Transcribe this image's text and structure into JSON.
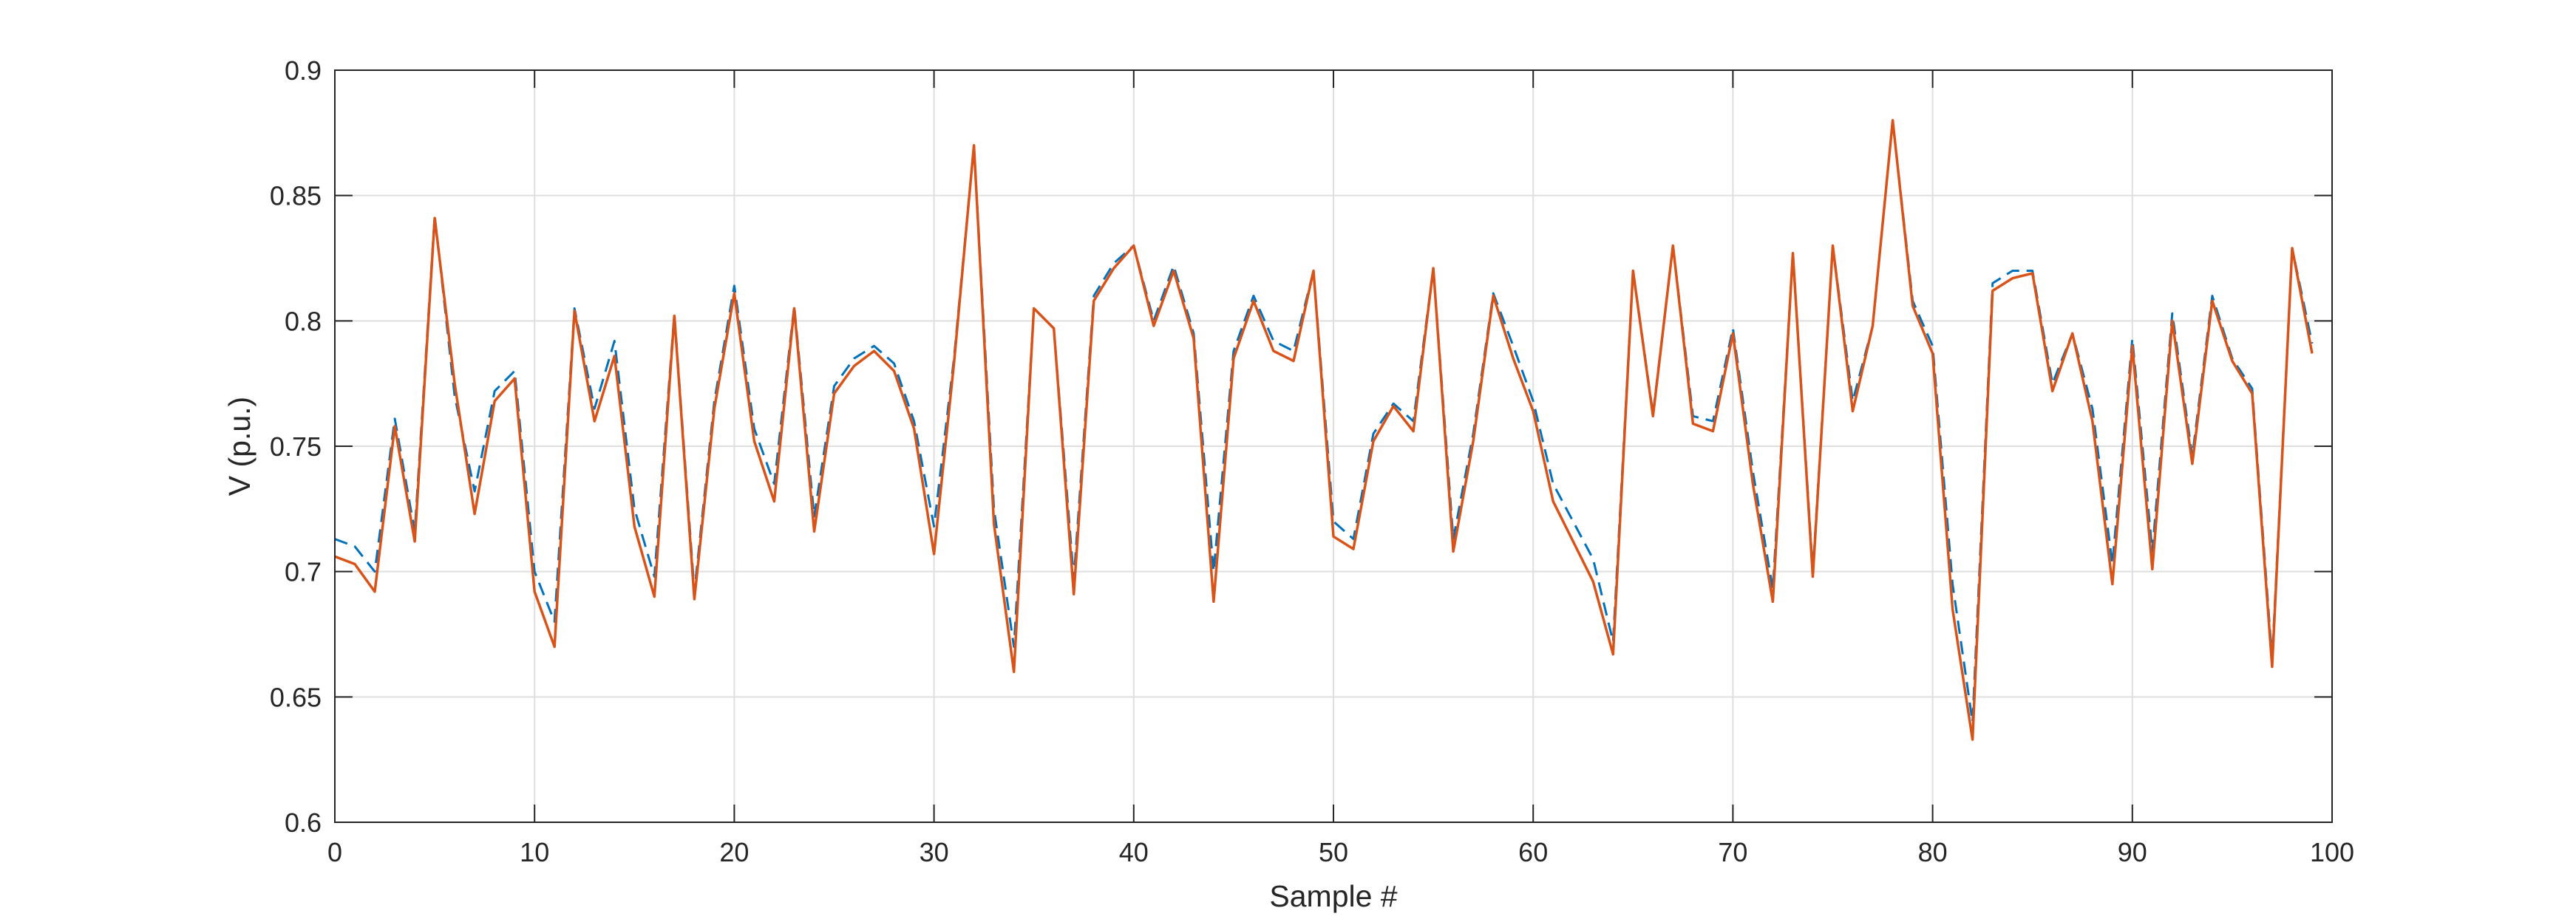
{
  "chart_data": {
    "type": "line",
    "xlabel": "Sample #",
    "ylabel": "V (p.u.)",
    "xlim": [
      0,
      100
    ],
    "ylim": [
      0.6,
      0.9
    ],
    "xticks": [
      0,
      10,
      20,
      30,
      40,
      50,
      60,
      70,
      80,
      90,
      100
    ],
    "yticks": [
      0.6,
      0.65,
      0.7,
      0.75,
      0.8,
      0.85,
      0.9
    ],
    "xtick_labels": [
      "0",
      "10",
      "20",
      "30",
      "40",
      "50",
      "60",
      "70",
      "80",
      "90",
      "100"
    ],
    "ytick_labels": [
      "0.6",
      "0.65",
      "0.7",
      "0.75",
      "0.8",
      "0.85",
      "0.9"
    ],
    "grid": true,
    "x": [
      0,
      1,
      2,
      3,
      4,
      5,
      6,
      7,
      8,
      9,
      10,
      11,
      12,
      13,
      14,
      15,
      16,
      17,
      18,
      19,
      20,
      21,
      22,
      23,
      24,
      25,
      26,
      27,
      28,
      29,
      30,
      31,
      32,
      33,
      34,
      35,
      36,
      37,
      38,
      39,
      40,
      41,
      42,
      43,
      44,
      45,
      46,
      47,
      48,
      49,
      50,
      51,
      52,
      53,
      54,
      55,
      56,
      57,
      58,
      59,
      60,
      61,
      62,
      63,
      64,
      65,
      66,
      67,
      68,
      69,
      70,
      71,
      72,
      73,
      74,
      75,
      76,
      77,
      78,
      79,
      80,
      81,
      82,
      83,
      84,
      85,
      86,
      87,
      88,
      89,
      90,
      91,
      92,
      93,
      94,
      95,
      96,
      97,
      98,
      99
    ],
    "series": [
      {
        "style": "dashed",
        "color": "#0072BD",
        "values": [
          0.713,
          0.71,
          0.7,
          0.761,
          0.716,
          0.842,
          0.77,
          0.732,
          0.772,
          0.78,
          0.7,
          0.68,
          0.805,
          0.765,
          0.792,
          0.725,
          0.698,
          0.803,
          0.692,
          0.768,
          0.814,
          0.757,
          0.735,
          0.806,
          0.722,
          0.774,
          0.785,
          0.79,
          0.783,
          0.76,
          0.718,
          0.785,
          0.87,
          0.725,
          0.67,
          0.805,
          0.797,
          0.697,
          0.81,
          0.823,
          0.83,
          0.8,
          0.822,
          0.795,
          0.7,
          0.788,
          0.81,
          0.792,
          0.788,
          0.82,
          0.72,
          0.713,
          0.755,
          0.767,
          0.76,
          0.821,
          0.713,
          0.755,
          0.811,
          0.79,
          0.768,
          0.735,
          0.72,
          0.705,
          0.672,
          0.82,
          0.763,
          0.83,
          0.762,
          0.76,
          0.797,
          0.74,
          0.693,
          0.827,
          0.7,
          0.83,
          0.768,
          0.798,
          0.88,
          0.808,
          0.79,
          0.695,
          0.64,
          0.815,
          0.82,
          0.82,
          0.775,
          0.795,
          0.765,
          0.703,
          0.793,
          0.708,
          0.803,
          0.746,
          0.81,
          0.785,
          0.773,
          0.665,
          0.829,
          0.791
        ]
      },
      {
        "style": "solid",
        "color": "#D95319",
        "values": [
          0.706,
          0.703,
          0.692,
          0.758,
          0.712,
          0.841,
          0.775,
          0.723,
          0.768,
          0.777,
          0.692,
          0.67,
          0.804,
          0.76,
          0.786,
          0.718,
          0.69,
          0.802,
          0.689,
          0.765,
          0.811,
          0.752,
          0.728,
          0.805,
          0.716,
          0.771,
          0.782,
          0.788,
          0.78,
          0.757,
          0.707,
          0.783,
          0.87,
          0.719,
          0.66,
          0.805,
          0.797,
          0.691,
          0.808,
          0.821,
          0.83,
          0.798,
          0.82,
          0.793,
          0.688,
          0.785,
          0.808,
          0.788,
          0.784,
          0.82,
          0.714,
          0.709,
          0.752,
          0.766,
          0.756,
          0.821,
          0.708,
          0.752,
          0.81,
          0.785,
          0.764,
          0.728,
          0.712,
          0.696,
          0.667,
          0.82,
          0.762,
          0.83,
          0.759,
          0.756,
          0.795,
          0.735,
          0.688,
          0.827,
          0.698,
          0.83,
          0.764,
          0.798,
          0.88,
          0.806,
          0.787,
          0.685,
          0.633,
          0.812,
          0.817,
          0.819,
          0.772,
          0.795,
          0.76,
          0.695,
          0.79,
          0.701,
          0.8,
          0.743,
          0.808,
          0.784,
          0.771,
          0.662,
          0.829,
          0.787
        ]
      }
    ]
  }
}
